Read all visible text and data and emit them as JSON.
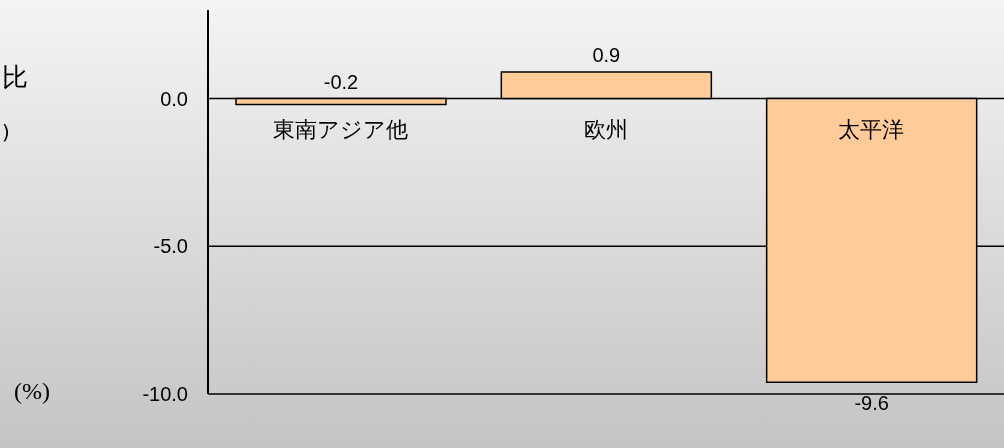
{
  "chart_data": {
    "type": "bar",
    "ylabel": "(%)",
    "annotations": [
      "比",
      ")"
    ],
    "categories": [
      "東南アジア他",
      "欧州",
      "太平洋"
    ],
    "values": [
      -0.2,
      0.9,
      -9.6
    ],
    "color": "#ffcc99",
    "ylim": [
      -10,
      3
    ],
    "yticks": [
      {
        "value": 0,
        "label": "0.0"
      },
      {
        "value": -5,
        "label": "-5.0"
      },
      {
        "value": -10,
        "label": "-10.0"
      }
    ],
    "grid": "y",
    "data_labels": true
  }
}
